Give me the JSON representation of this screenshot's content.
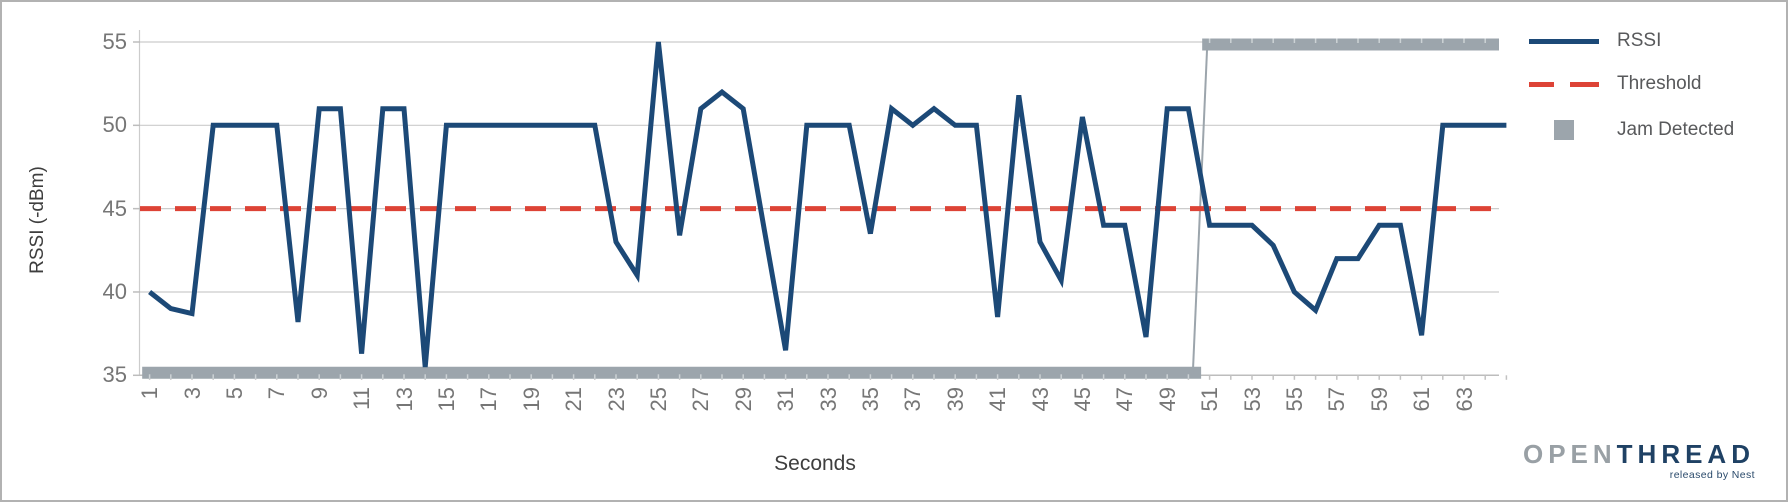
{
  "chart_data": {
    "type": "line",
    "title": "",
    "xlabel": "Seconds",
    "ylabel": "RSSI (-dBm)",
    "x_tick_labels": [
      1,
      3,
      5,
      7,
      9,
      11,
      13,
      15,
      17,
      19,
      21,
      23,
      25,
      27,
      29,
      31,
      33,
      35,
      37,
      39,
      41,
      43,
      45,
      47,
      49,
      51,
      53,
      55,
      57,
      59,
      61,
      63
    ],
    "y_tick_labels": [
      55,
      50,
      45,
      40,
      35
    ],
    "ylim": [
      35,
      55.8
    ],
    "grid": "horizontal-only",
    "legend_position": "right",
    "series": [
      {
        "name": "RSSI",
        "type": "line",
        "color": "#1c4977",
        "x_start": 1,
        "values": [
          40,
          39,
          38.7,
          50,
          50,
          50,
          50,
          38.2,
          51,
          51,
          36.3,
          51,
          51,
          35.5,
          50,
          50,
          50,
          50,
          50,
          50,
          50,
          50,
          43,
          41,
          55,
          43.4,
          51,
          52,
          51,
          43.7,
          36.5,
          50,
          50,
          50,
          43.5,
          51,
          50,
          51,
          50,
          50,
          38.5,
          51.8,
          43,
          40.7,
          50.5,
          44,
          44,
          37.3,
          51,
          51,
          44,
          44,
          44,
          42.8,
          40,
          38.9,
          42,
          42,
          44,
          44,
          37.4,
          50,
          50,
          50,
          50
        ]
      },
      {
        "name": "Threshold",
        "type": "dashed-horizontal-line",
        "color": "#dd4336",
        "value": 45
      },
      {
        "name": "Jam Detected",
        "type": "step-segments",
        "color": "#9ca5ac",
        "low_value": 35.15,
        "high_value": 54.85,
        "low_segment_x": [
          0.65,
          50.6
        ],
        "high_segment_x": [
          50.65,
          64.7
        ],
        "transition_x": [
          50.2,
          50.9
        ],
        "meaning": "jam not detected at ~35 dBm band until second ~50, jam detected band at ~55 afterwards"
      }
    ],
    "legend": [
      {
        "label": "RSSI",
        "swatch": "solid-line",
        "color": "#1c4977"
      },
      {
        "label": "Threshold",
        "swatch": "dashed-line",
        "color": "#dd4336"
      },
      {
        "label": "Jam Detected",
        "swatch": "square",
        "color": "#9ca5ac"
      }
    ]
  },
  "axes": {
    "x_title": "Seconds",
    "y_title": "RSSI (-dBm)"
  },
  "legend_items": {
    "rssi": "RSSI",
    "threshold": "Threshold",
    "jam": "Jam Detected"
  },
  "logo": {
    "word_gray": "OPEN",
    "word_navy": "THREAD",
    "tagline": "released by Nest"
  },
  "colors": {
    "rssi_line": "#1c4977",
    "threshold_line": "#dd4336",
    "jam_bar": "#9ca5ac",
    "gridline": "#cccccc",
    "axis_line": "#bdbdbd",
    "tick_text": "#767676",
    "axis_title_text": "#3e3e3e",
    "legend_text": "#58595b",
    "logo_gray": "#99a0a5",
    "logo_navy": "#1f4164"
  }
}
